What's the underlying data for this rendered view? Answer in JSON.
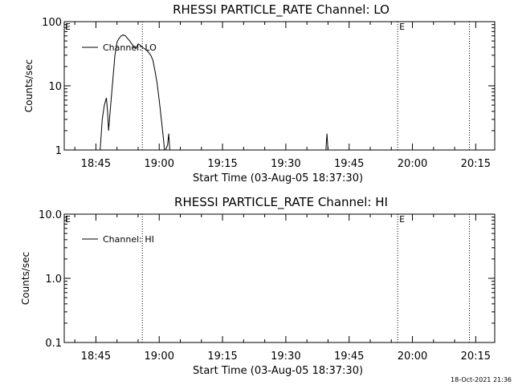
{
  "footer_timestamp": "18-Oct-2021 21:36",
  "chart_data": [
    {
      "type": "line",
      "title": "RHESSI PARTICLE_RATE Channel: LO",
      "xlabel": "Start Time (03-Aug-05 18:37:30)",
      "ylabel": "Counts/sec",
      "x_unit": "minutes_of_day",
      "xlim": [
        "18:37:30",
        "20:19:30"
      ],
      "x_ticks": [
        "18:45",
        "19:00",
        "19:15",
        "19:30",
        "19:45",
        "20:00",
        "20:15"
      ],
      "y_scale": "log",
      "ylim": [
        1,
        100
      ],
      "y_ticks": [
        "1",
        "10",
        "100"
      ],
      "legend": {
        "position": "top-left",
        "entries": [
          "Channel: LO"
        ]
      },
      "markers": [
        {
          "time": "18:56:00",
          "label": ""
        },
        {
          "time": "19:56:30",
          "label": "E"
        },
        {
          "time": "20:13:30",
          "label": ""
        }
      ],
      "left_edge_label": "E",
      "series": [
        {
          "name": "Channel: LO",
          "x": [
            "18:46:00",
            "18:46:30",
            "18:47:00",
            "18:47:30",
            "18:47:45",
            "18:48:00",
            "18:48:30",
            "18:49:00",
            "18:49:30",
            "18:50:00",
            "18:50:30",
            "18:51:00",
            "18:51:30",
            "18:52:00",
            "18:52:30",
            "18:53:00",
            "18:53:30",
            "18:54:00",
            "18:54:30",
            "18:55:00",
            "18:55:30",
            "18:56:00",
            "18:56:30",
            "18:57:00",
            "18:57:30",
            "18:58:00",
            "18:58:30",
            "18:59:00",
            "18:59:30",
            "19:00:00",
            "19:00:30",
            "19:01:00",
            "19:01:15",
            "19:01:30",
            "19:02:00",
            "19:02:15",
            "19:02:30",
            "19:02:45",
            "19:03:00",
            "19:03:15",
            "19:39:30",
            "19:39:45",
            "19:40:00"
          ],
          "y": [
            1.0,
            3.0,
            5.0,
            6.5,
            4.0,
            2.0,
            5.0,
            12.0,
            30.0,
            48.0,
            55.0,
            60.0,
            62.0,
            60.0,
            55.0,
            50.0,
            45.0,
            40.0,
            38.0,
            45.0,
            43.0,
            40.0,
            38.0,
            36.0,
            33.0,
            30.0,
            25.0,
            17.0,
            11.0,
            6.0,
            3.0,
            1.5,
            1.0,
            1.0,
            1.2,
            1.8,
            1.0,
            1.0,
            1.0,
            1.0,
            1.0,
            1.8,
            1.0
          ]
        }
      ]
    },
    {
      "type": "line",
      "title": "RHESSI PARTICLE_RATE Channel: HI",
      "xlabel": "Start Time (03-Aug-05 18:37:30)",
      "ylabel": "Counts/sec",
      "x_unit": "minutes_of_day",
      "xlim": [
        "18:37:30",
        "20:19:30"
      ],
      "x_ticks": [
        "18:45",
        "19:00",
        "19:15",
        "19:30",
        "19:45",
        "20:00",
        "20:15"
      ],
      "y_scale": "log",
      "ylim": [
        0.1,
        10.0
      ],
      "y_ticks": [
        "0.1",
        "1.0",
        "10.0"
      ],
      "legend": {
        "position": "top-left",
        "entries": [
          "Channel: HI"
        ]
      },
      "markers": [
        {
          "time": "18:56:00",
          "label": ""
        },
        {
          "time": "19:56:30",
          "label": "E"
        },
        {
          "time": "20:13:30",
          "label": ""
        }
      ],
      "left_edge_label": "E",
      "series": [
        {
          "name": "Channel: HI",
          "x": [],
          "y": []
        }
      ]
    }
  ]
}
